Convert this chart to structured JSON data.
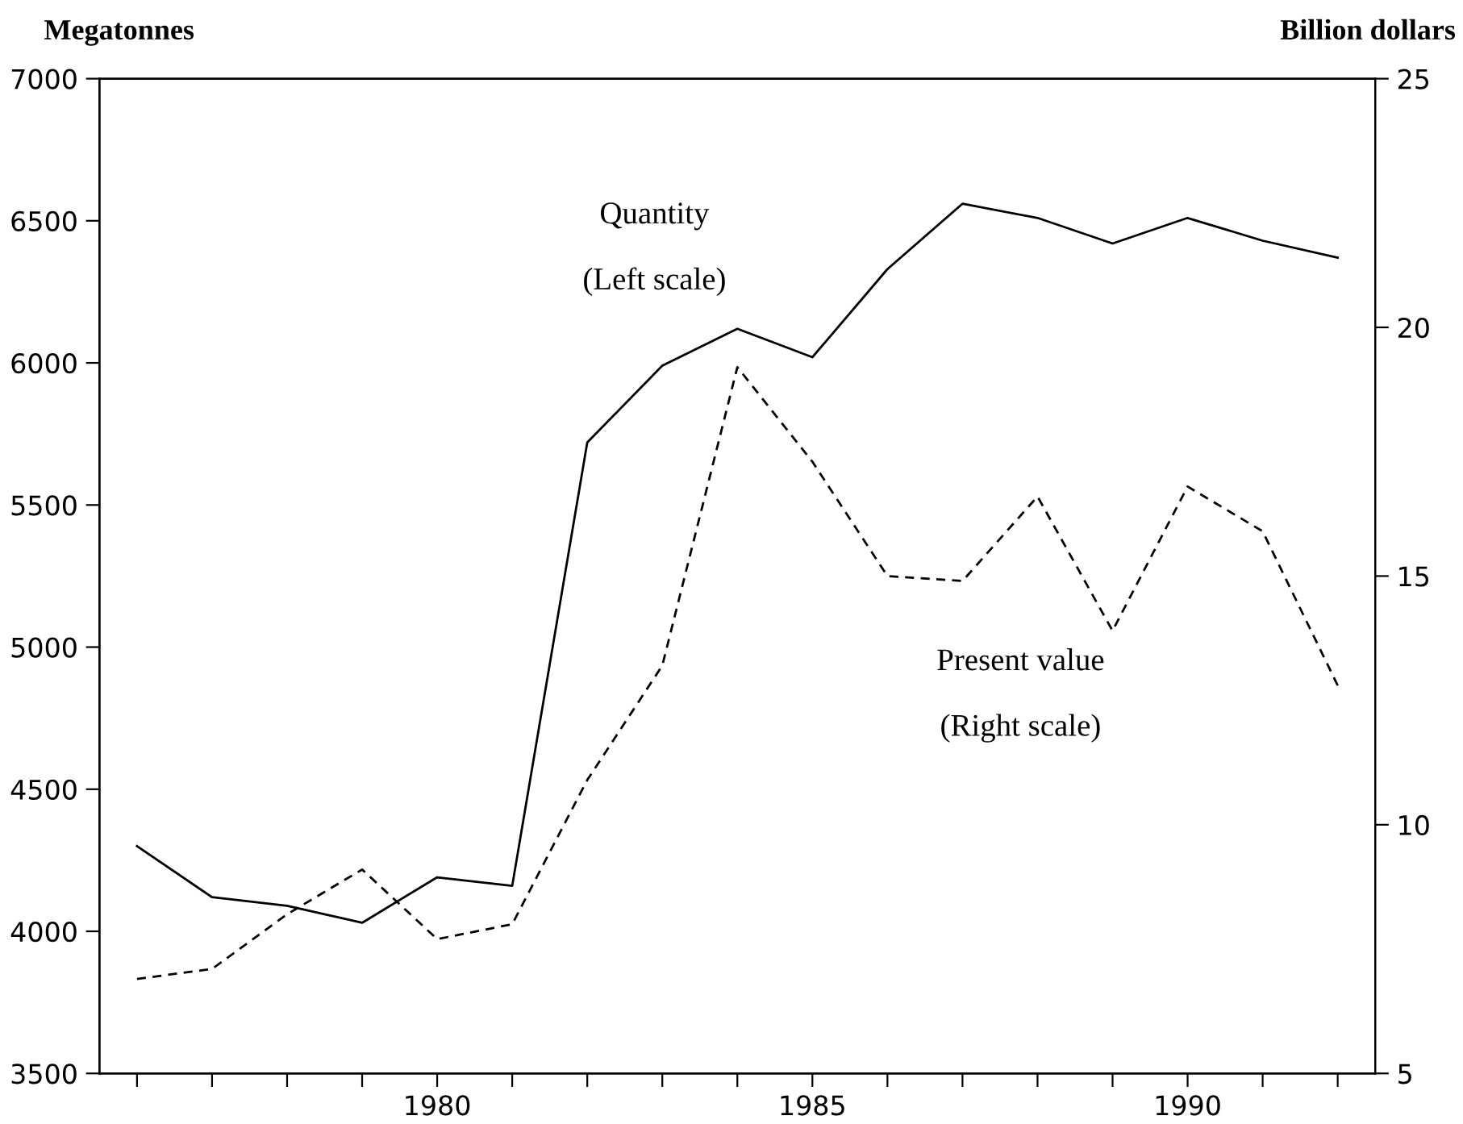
{
  "chart_data": {
    "type": "line",
    "ylabel": "Megatonnes",
    "y2label": "Billion dollars",
    "x": [
      1976,
      1977,
      1978,
      1979,
      1980,
      1981,
      1982,
      1983,
      1984,
      1985,
      1986,
      1987,
      1988,
      1989,
      1990,
      1991,
      1992
    ],
    "series": [
      {
        "color": "#000000",
        "line_style": "solid",
        "values": [
          4300,
          4120,
          4090,
          4030,
          4190,
          4160,
          5720,
          5990,
          6120,
          6020,
          6330,
          6560,
          6510,
          6420,
          6510,
          6430,
          6370
        ]
      },
      {
        "color": "#000000",
        "line_style": "dashed",
        "axis": "y2",
        "values": [
          6.9,
          7.1,
          8.2,
          9.1,
          7.7,
          8.0,
          10.9,
          13.2,
          19.2,
          17.3,
          15.0,
          14.9,
          16.6,
          13.9,
          16.8,
          15.9,
          12.8
        ]
      }
    ],
    "annotations": [
      "Quantity",
      "(Left scale)",
      "Present value",
      "(Right scale)"
    ],
    "xlim": [
      1975.5,
      1992.5
    ],
    "xticks": [
      {
        "value": 1976,
        "label": null
      },
      {
        "value": 1977,
        "label": null
      },
      {
        "value": 1978,
        "label": null
      },
      {
        "value": 1979,
        "label": null
      },
      1980,
      {
        "value": 1981,
        "label": null
      },
      {
        "value": 1982,
        "label": null
      },
      {
        "value": 1983,
        "label": null
      },
      {
        "value": 1984,
        "label": null
      },
      1985,
      {
        "value": 1986,
        "label": null
      },
      {
        "value": 1987,
        "label": null
      },
      {
        "value": 1988,
        "label": null
      },
      {
        "value": 1989,
        "label": null
      },
      1990,
      {
        "value": 1991,
        "label": null
      },
      {
        "value": 1992,
        "label": null
      }
    ],
    "ylim": [
      3500,
      7000
    ],
    "yticks": [
      3500,
      4000,
      4500,
      5000,
      5500,
      6000,
      6500,
      7000
    ],
    "y2lim": [
      5,
      25
    ],
    "y2ticks": [
      5,
      10,
      15,
      20,
      25
    ],
    "grid": false,
    "legend": false,
    "marker": "none"
  }
}
